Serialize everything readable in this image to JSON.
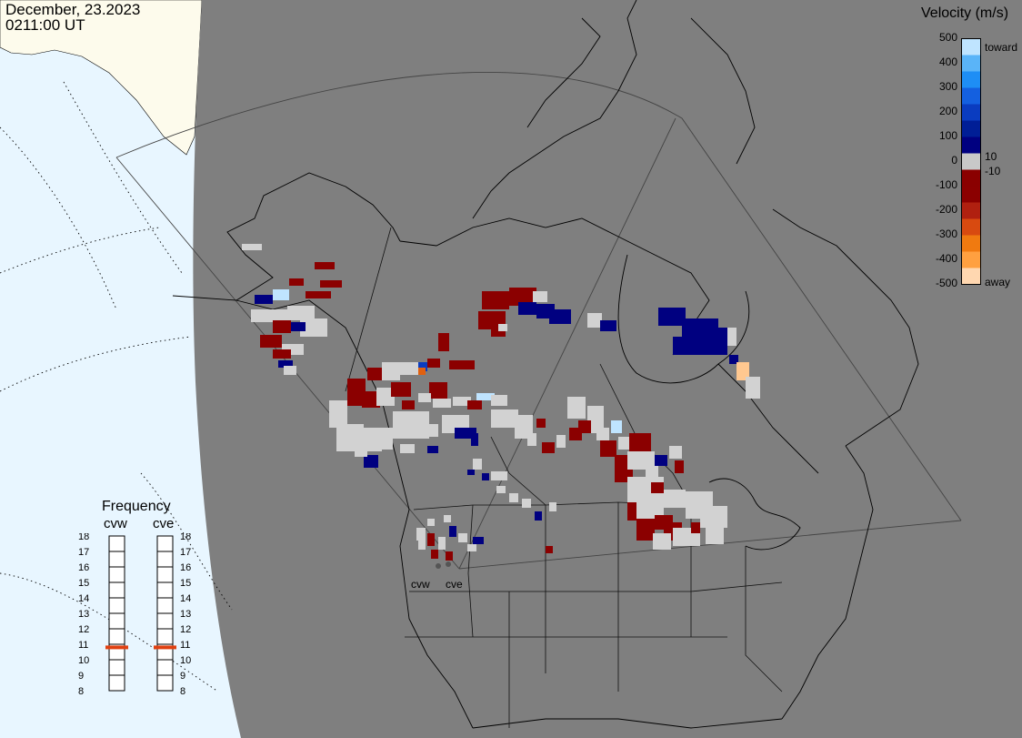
{
  "header": {
    "date": "December, 23.2023",
    "time": "0211:00 UT"
  },
  "legend": {
    "title": "Velocity (m/s)",
    "tick_labels": [
      "500",
      "400",
      "300",
      "200",
      "100",
      "0",
      "-100",
      "-200",
      "-300",
      "-400",
      "-500"
    ],
    "extra_labels": {
      "toward": "toward",
      "away": "away",
      "pos10": "10",
      "neg10": "-10"
    },
    "colors": [
      "#ffd7b0",
      "#ffa040",
      "#f07a10",
      "#d84a10",
      "#b02010",
      "#8b0000",
      "#8a0000",
      "#c8c8c8",
      "#000080",
      "#001e96",
      "#0a3cc0",
      "#1460e0",
      "#1e8ef5",
      "#5ab4f8",
      "#bfe4ff"
    ]
  },
  "frequency": {
    "title": "Frequency",
    "radars": [
      "cvw",
      "cve"
    ],
    "scale": [
      "18",
      "17",
      "16",
      "15",
      "14",
      "13",
      "12",
      "11",
      "10",
      "9",
      "8"
    ],
    "values_mhz": [
      10.8,
      10.8
    ],
    "marker_color": "#e04010"
  },
  "stations": {
    "labels": [
      "cvw",
      "cve"
    ]
  },
  "map": {
    "ocean_color": "#e8f6ff",
    "night_color": "#7f7f7f",
    "sunlit_land_color": "#fdfbec",
    "data_colors": {
      "ground_scatter": "#d2d2d2",
      "toward_strong": "#000080",
      "toward_mid": "#0a3cc0",
      "toward_weak": "#bfe4ff",
      "away_strong": "#8b0000",
      "away_mid": "#e06010",
      "away_weak": "#ffc890"
    }
  }
}
